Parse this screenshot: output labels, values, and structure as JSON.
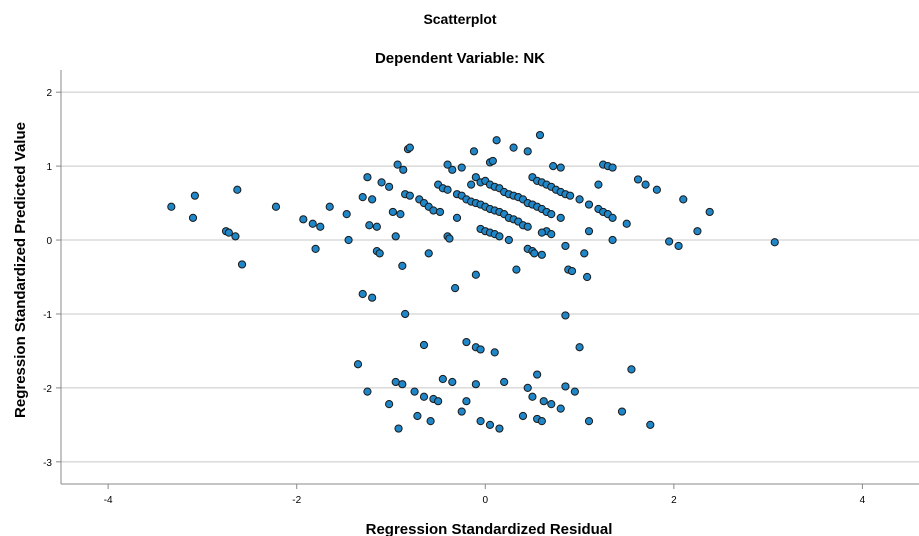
{
  "chart_data": {
    "type": "scatter",
    "title": "Scatterplot",
    "subtitle": "Dependent Variable: NK",
    "xlabel": "Regression Standardized Residual",
    "ylabel": "Regression Standardized Predicted Value",
    "xlim": [
      -4.5,
      4.6
    ],
    "ylim": [
      -3.3,
      2.3
    ],
    "xticks": [
      -4,
      -2,
      0,
      2,
      4
    ],
    "yticks": [
      2,
      1,
      0,
      -1,
      -2,
      -3
    ],
    "grid": "horizontal",
    "legend": "none",
    "colors": {
      "marker_fill": "#1f86c8",
      "marker_edge": "#1a1a1a",
      "grid": "#c8c8c8",
      "axis": "#888888"
    },
    "points": [
      [
        -3.33,
        0.45
      ],
      [
        -3.08,
        0.6
      ],
      [
        -3.1,
        0.3
      ],
      [
        -2.75,
        0.12
      ],
      [
        -2.72,
        0.1
      ],
      [
        -2.63,
        0.68
      ],
      [
        -2.65,
        0.05
      ],
      [
        -2.58,
        -0.33
      ],
      [
        -2.22,
        0.45
      ],
      [
        -1.93,
        0.28
      ],
      [
        -1.83,
        0.22
      ],
      [
        -1.8,
        -0.12
      ],
      [
        -1.75,
        0.18
      ],
      [
        -1.65,
        0.45
      ],
      [
        -1.47,
        0.35
      ],
      [
        -1.45,
        0.0
      ],
      [
        -1.3,
        0.58
      ],
      [
        -1.25,
        0.85
      ],
      [
        -1.23,
        0.2
      ],
      [
        -1.15,
        0.18
      ],
      [
        -1.15,
        -0.15
      ],
      [
        -1.12,
        -0.18
      ],
      [
        -1.1,
        0.78
      ],
      [
        -1.02,
        0.72
      ],
      [
        -1.2,
        0.55
      ],
      [
        -0.98,
        0.38
      ],
      [
        -0.95,
        0.05
      ],
      [
        -0.93,
        1.02
      ],
      [
        -0.9,
        0.35
      ],
      [
        -0.87,
        0.95
      ],
      [
        -0.85,
        0.62
      ],
      [
        -0.8,
        0.6
      ],
      [
        -0.7,
        0.55
      ],
      [
        -0.65,
        0.5
      ],
      [
        -0.6,
        0.45
      ],
      [
        -0.55,
        0.4
      ],
      [
        -0.5,
        0.75
      ],
      [
        -0.45,
        0.7
      ],
      [
        -0.4,
        0.68
      ],
      [
        -0.35,
        0.95
      ],
      [
        -0.3,
        0.62
      ],
      [
        -0.25,
        0.6
      ],
      [
        -0.2,
        0.55
      ],
      [
        -0.15,
        0.52
      ],
      [
        -0.1,
        0.5
      ],
      [
        -0.05,
        0.48
      ],
      [
        0.0,
        0.45
      ],
      [
        0.05,
        0.42
      ],
      [
        0.1,
        0.4
      ],
      [
        0.15,
        0.38
      ],
      [
        0.2,
        0.35
      ],
      [
        0.25,
        0.3
      ],
      [
        0.3,
        0.28
      ],
      [
        0.35,
        0.25
      ],
      [
        0.4,
        0.2
      ],
      [
        0.45,
        0.18
      ],
      [
        -0.48,
        0.38
      ],
      [
        -0.4,
        0.05
      ],
      [
        -0.38,
        0.02
      ],
      [
        -0.3,
        0.3
      ],
      [
        -0.15,
        0.75
      ],
      [
        -0.1,
        0.85
      ],
      [
        -0.05,
        0.78
      ],
      [
        0.0,
        0.8
      ],
      [
        0.05,
        0.75
      ],
      [
        0.1,
        0.72
      ],
      [
        0.15,
        0.7
      ],
      [
        0.2,
        0.65
      ],
      [
        0.25,
        0.62
      ],
      [
        0.3,
        0.6
      ],
      [
        0.35,
        0.58
      ],
      [
        0.4,
        0.55
      ],
      [
        0.45,
        0.5
      ],
      [
        0.5,
        0.48
      ],
      [
        0.55,
        0.45
      ],
      [
        0.6,
        0.42
      ],
      [
        0.65,
        0.38
      ],
      [
        0.7,
        0.35
      ],
      [
        0.8,
        0.3
      ],
      [
        0.05,
        1.05
      ],
      [
        0.08,
        1.07
      ],
      [
        -0.12,
        1.2
      ],
      [
        -0.4,
        1.02
      ],
      [
        -0.25,
        0.98
      ],
      [
        -0.82,
        1.23
      ],
      [
        -0.8,
        1.25
      ],
      [
        0.12,
        1.35
      ],
      [
        0.3,
        1.25
      ],
      [
        0.45,
        1.2
      ],
      [
        0.58,
        1.42
      ],
      [
        0.72,
        1.0
      ],
      [
        0.8,
        0.98
      ],
      [
        0.5,
        0.85
      ],
      [
        0.55,
        0.8
      ],
      [
        0.6,
        0.78
      ],
      [
        0.65,
        0.75
      ],
      [
        0.7,
        0.72
      ],
      [
        0.75,
        0.68
      ],
      [
        0.8,
        0.65
      ],
      [
        0.85,
        0.62
      ],
      [
        0.9,
        0.6
      ],
      [
        1.0,
        0.55
      ],
      [
        1.1,
        0.48
      ],
      [
        1.2,
        0.42
      ],
      [
        1.25,
        0.38
      ],
      [
        1.3,
        0.35
      ],
      [
        1.35,
        0.3
      ],
      [
        1.5,
        0.22
      ],
      [
        1.62,
        0.82
      ],
      [
        1.7,
        0.75
      ],
      [
        1.82,
        0.68
      ],
      [
        1.25,
        1.02
      ],
      [
        1.3,
        1.0
      ],
      [
        1.35,
        0.98
      ],
      [
        2.1,
        0.55
      ],
      [
        2.38,
        0.38
      ],
      [
        1.2,
        0.75
      ],
      [
        -0.05,
        0.15
      ],
      [
        0.0,
        0.12
      ],
      [
        0.05,
        0.1
      ],
      [
        0.1,
        0.08
      ],
      [
        0.15,
        0.05
      ],
      [
        0.25,
        0.0
      ],
      [
        0.45,
        -0.12
      ],
      [
        0.5,
        -0.15
      ],
      [
        0.52,
        -0.18
      ],
      [
        0.6,
        -0.2
      ],
      [
        0.65,
        0.12
      ],
      [
        0.6,
        0.1
      ],
      [
        0.7,
        0.08
      ],
      [
        0.85,
        -0.08
      ],
      [
        0.88,
        -0.4
      ],
      [
        0.92,
        -0.42
      ],
      [
        1.05,
        -0.18
      ],
      [
        1.08,
        -0.5
      ],
      [
        1.1,
        0.12
      ],
      [
        1.35,
        0.0
      ],
      [
        1.95,
        -0.02
      ],
      [
        2.05,
        -0.08
      ],
      [
        2.25,
        0.12
      ],
      [
        3.07,
        -0.03
      ],
      [
        -0.1,
        -0.47
      ],
      [
        0.33,
        -0.4
      ],
      [
        -0.6,
        -0.18
      ],
      [
        -0.88,
        -0.35
      ],
      [
        -0.32,
        -0.65
      ],
      [
        -1.3,
        -0.73
      ],
      [
        -1.2,
        -0.78
      ],
      [
        -0.85,
        -1.0
      ],
      [
        0.85,
        -1.02
      ],
      [
        -0.65,
        -1.42
      ],
      [
        -0.2,
        -1.38
      ],
      [
        -0.1,
        -1.45
      ],
      [
        -0.05,
        -1.48
      ],
      [
        0.1,
        -1.52
      ],
      [
        1.0,
        -1.45
      ],
      [
        -1.35,
        -1.68
      ],
      [
        -1.25,
        -2.05
      ],
      [
        -0.95,
        -1.92
      ],
      [
        -0.88,
        -1.95
      ],
      [
        -1.02,
        -2.22
      ],
      [
        -0.92,
        -2.55
      ],
      [
        -0.75,
        -2.05
      ],
      [
        -0.72,
        -2.38
      ],
      [
        -0.65,
        -2.12
      ],
      [
        -0.58,
        -2.45
      ],
      [
        -0.55,
        -2.15
      ],
      [
        -0.5,
        -2.18
      ],
      [
        -0.45,
        -1.88
      ],
      [
        -0.35,
        -1.92
      ],
      [
        -0.25,
        -2.32
      ],
      [
        -0.2,
        -2.18
      ],
      [
        -0.1,
        -1.95
      ],
      [
        -0.05,
        -2.45
      ],
      [
        0.05,
        -2.5
      ],
      [
        0.15,
        -2.55
      ],
      [
        0.2,
        -1.92
      ],
      [
        0.45,
        -2.0
      ],
      [
        0.55,
        -1.82
      ],
      [
        0.5,
        -2.12
      ],
      [
        0.55,
        -2.42
      ],
      [
        0.6,
        -2.45
      ],
      [
        0.62,
        -2.18
      ],
      [
        0.7,
        -2.22
      ],
      [
        0.8,
        -2.28
      ],
      [
        0.85,
        -1.98
      ],
      [
        0.95,
        -2.05
      ],
      [
        1.1,
        -2.45
      ],
      [
        1.45,
        -2.32
      ],
      [
        1.55,
        -1.75
      ],
      [
        1.75,
        -2.5
      ],
      [
        0.4,
        -2.38
      ]
    ]
  }
}
